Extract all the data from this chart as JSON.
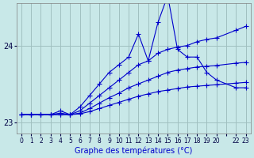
{
  "xlabel": "Graphe des températures (°C)",
  "background_color": "#c8e8e8",
  "grid_color": "#a0c0c0",
  "line_color": "#0000cc",
  "xlim": [
    -0.5,
    23.5
  ],
  "ylim": [
    22.85,
    24.55
  ],
  "yticks": [
    23,
    24
  ],
  "xtick_positions": [
    0,
    1,
    2,
    3,
    4,
    5,
    6,
    7,
    8,
    9,
    10,
    11,
    12,
    13,
    14,
    15,
    16,
    17,
    18,
    19,
    20,
    21,
    22,
    23
  ],
  "xtick_labels": [
    "0",
    "1",
    "2",
    "3",
    "4",
    "5",
    "6",
    "7",
    "8",
    "9",
    "10",
    "11",
    "12",
    "13",
    "14",
    "15",
    "16",
    "17",
    "18",
    "19",
    "20",
    "",
    "22",
    "23"
  ],
  "series1": [
    0,
    1,
    2,
    3,
    4,
    5,
    6,
    7,
    8,
    9,
    10,
    11,
    12,
    13,
    14,
    15,
    16,
    17,
    18,
    19,
    20,
    22,
    23
  ],
  "vals1": [
    23.1,
    23.1,
    23.1,
    23.1,
    23.15,
    23.1,
    23.2,
    23.35,
    23.5,
    23.65,
    23.75,
    23.85,
    24.15,
    23.8,
    24.3,
    24.65,
    23.95,
    23.85,
    23.85,
    23.65,
    23.55,
    23.45,
    23.45
  ],
  "series2": [
    0,
    1,
    2,
    3,
    4,
    5,
    6,
    7,
    8,
    9,
    10,
    11,
    12,
    13,
    14,
    15,
    16,
    17,
    18,
    19,
    20,
    22,
    23
  ],
  "vals2": [
    23.1,
    23.1,
    23.1,
    23.1,
    23.12,
    23.1,
    23.15,
    23.25,
    23.35,
    23.45,
    23.55,
    23.65,
    23.75,
    23.8,
    23.9,
    23.95,
    23.98,
    24.0,
    24.05,
    24.08,
    24.1,
    24.2,
    24.25
  ],
  "series3": [
    0,
    1,
    2,
    3,
    4,
    5,
    6,
    7,
    8,
    9,
    10,
    11,
    12,
    13,
    14,
    15,
    16,
    17,
    18,
    19,
    20,
    22,
    23
  ],
  "vals3": [
    23.1,
    23.1,
    23.1,
    23.1,
    23.1,
    23.1,
    23.12,
    23.18,
    23.25,
    23.32,
    23.38,
    23.45,
    23.5,
    23.55,
    23.6,
    23.65,
    23.68,
    23.7,
    23.72,
    23.73,
    23.74,
    23.77,
    23.78
  ],
  "series4": [
    0,
    1,
    2,
    3,
    4,
    5,
    6,
    7,
    8,
    9,
    10,
    11,
    12,
    13,
    14,
    15,
    16,
    17,
    18,
    19,
    20,
    22,
    23
  ],
  "vals4": [
    23.1,
    23.1,
    23.1,
    23.1,
    23.1,
    23.1,
    23.11,
    23.14,
    23.18,
    23.22,
    23.26,
    23.3,
    23.34,
    23.37,
    23.4,
    23.42,
    23.44,
    23.46,
    23.47,
    23.48,
    23.49,
    23.51,
    23.52
  ]
}
